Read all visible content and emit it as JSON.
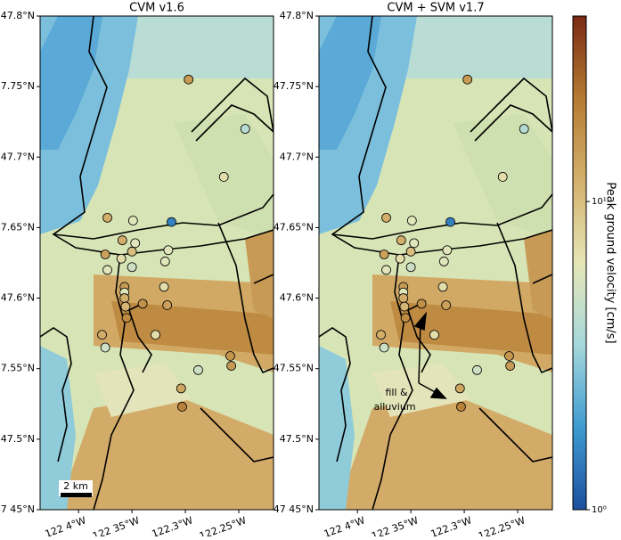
{
  "chart_data": {
    "type": "map",
    "panels": [
      {
        "title": "CVM v1.6"
      },
      {
        "title": "CVM + SVM v1.7"
      }
    ],
    "xlim": [
      -122.436,
      -122.2175
    ],
    "ylim": [
      47.45,
      47.8
    ],
    "xticks": [
      {
        "value": -122.4,
        "label": "122 4°W"
      },
      {
        "value": -122.35,
        "label": "122 35°W"
      },
      {
        "value": -122.3,
        "label": "122.3°W"
      },
      {
        "value": -122.25,
        "label": "122.25°W"
      }
    ],
    "yticks": [
      {
        "value": 47.45,
        "label": "47 45°N"
      },
      {
        "value": 47.5,
        "label": "47.5°N"
      },
      {
        "value": 47.55,
        "label": "47.55°N"
      },
      {
        "value": 47.6,
        "label": "47.6°N"
      },
      {
        "value": 47.65,
        "label": "47.65°N"
      },
      {
        "value": 47.7,
        "label": "47.7°N"
      },
      {
        "value": 47.75,
        "label": "47.75°N"
      },
      {
        "value": 47.8,
        "label": "47.8°N"
      }
    ],
    "stations": {
      "lon": [
        -122.297,
        -122.244,
        -122.264,
        -122.373,
        -122.349,
        -122.313,
        -122.359,
        -122.347,
        -122.375,
        -122.35,
        -122.36,
        -122.316,
        -122.35,
        -122.319,
        -122.373,
        -122.357,
        -122.32,
        -122.357,
        -122.357,
        -122.356,
        -122.34,
        -122.317,
        -122.355,
        -122.378,
        -122.328,
        -122.375,
        -122.288,
        -122.258,
        -122.257,
        -122.304,
        -122.303
      ],
      "lat": [
        47.755,
        47.72,
        47.686,
        47.657,
        47.655,
        47.654,
        47.641,
        47.639,
        47.631,
        47.633,
        47.628,
        47.634,
        47.622,
        47.626,
        47.62,
        47.608,
        47.608,
        47.604,
        47.6,
        47.594,
        47.596,
        47.595,
        47.586,
        47.574,
        47.574,
        47.565,
        47.549,
        47.559,
        47.552,
        47.536,
        47.523
      ],
      "pgv": [
        15,
        4,
        7,
        12,
        6,
        1.5,
        12,
        6,
        14,
        10,
        7,
        6,
        5,
        6,
        6,
        15,
        7,
        6,
        12,
        11,
        17,
        14,
        18,
        12,
        7,
        5,
        5,
        16,
        15,
        13,
        20
      ]
    },
    "colorbar": {
      "label": "Peak ground velocity [cm/s]",
      "lim": [
        1,
        40
      ],
      "log": true,
      "ticks": [
        {
          "value": 1,
          "label": "10⁰"
        },
        {
          "value": 10,
          "label": "10¹"
        }
      ],
      "colormap": [
        "#1d4f9e",
        "#3f9bd0",
        "#a5d7dc",
        "#e6e6b8",
        "#d3b06c",
        "#b57b32",
        "#7a2a14"
      ]
    },
    "scale_bar": "2 km",
    "annotation": [
      "fill &",
      "alluvium"
    ]
  }
}
